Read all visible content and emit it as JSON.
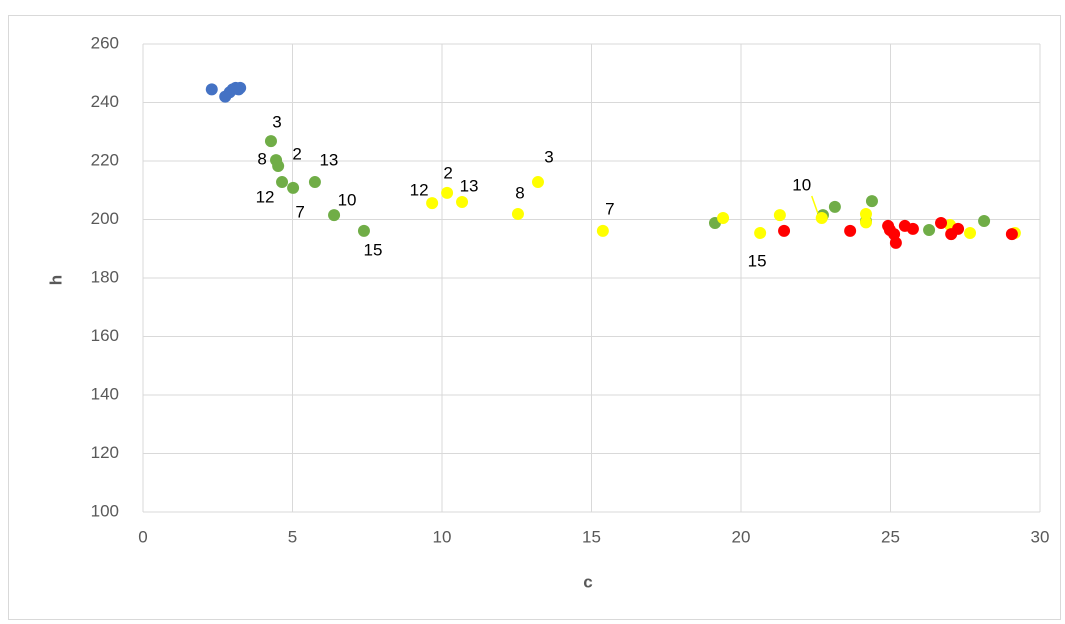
{
  "chart_data": {
    "type": "scatter",
    "x_label": "c",
    "y_label": "h",
    "xlim": [
      0,
      30
    ],
    "xticks": [
      0,
      5,
      10,
      15,
      20,
      25,
      30
    ],
    "ylim": [
      100,
      260
    ],
    "yticks": [
      100,
      120,
      140,
      160,
      180,
      200,
      220,
      240,
      260
    ],
    "grid": true,
    "series": [
      {
        "color": "#4472c4",
        "x": [
          2.3,
          2.75,
          2.9,
          3.0,
          3.1,
          3.2,
          3.25
        ],
        "values": [
          244.5,
          242,
          243.5,
          244.5,
          245,
          244.5,
          245
        ]
      },
      {
        "color": "#70ad47",
        "x": [
          4.28,
          4.45,
          4.52,
          4.65,
          5.02,
          5.75,
          6.39,
          7.39,
          19.13,
          22.74,
          23.14,
          24.18,
          24.38,
          26.29,
          28.13
        ],
        "values": [
          226.8,
          220.3,
          218.3,
          212.8,
          210.8,
          212.8,
          201.5,
          196.1,
          198.8,
          201.5,
          204.3,
          199.5,
          206.3,
          196.4,
          199.5
        ],
        "labels": [
          "3",
          "8",
          "2",
          "12",
          "7",
          "13",
          "10",
          "15",
          null,
          null,
          null,
          null,
          null,
          null,
          null
        ]
      },
      {
        "color": "#ffff00",
        "x": [
          9.67,
          10.17,
          10.67,
          12.54,
          13.21,
          15.38,
          20.64,
          22.7,
          19.4,
          21.3,
          24.18,
          24.18,
          26.99,
          27.66,
          29.16
        ],
        "values": [
          205.6,
          209.1,
          206,
          201.9,
          212.8,
          196.1,
          195.4,
          200.5,
          200.5,
          201.5,
          201.9,
          199,
          198.1,
          195.4,
          195.4
        ],
        "labels": [
          "12",
          "2",
          "13",
          "8",
          "3",
          "7",
          "15",
          "10",
          null,
          null,
          null,
          null,
          null,
          null,
          null
        ]
      },
      {
        "color": "#ff0000",
        "x": [
          21.44,
          23.65,
          26.69,
          24.92,
          24.98,
          25.12,
          25.18,
          25.48,
          25.75,
          27.03,
          27.26,
          29.06
        ],
        "values": [
          196.1,
          196.1,
          198.8,
          197.8,
          196.4,
          195,
          192,
          197.8,
          196.8,
          195,
          196.8,
          195
        ]
      }
    ]
  }
}
